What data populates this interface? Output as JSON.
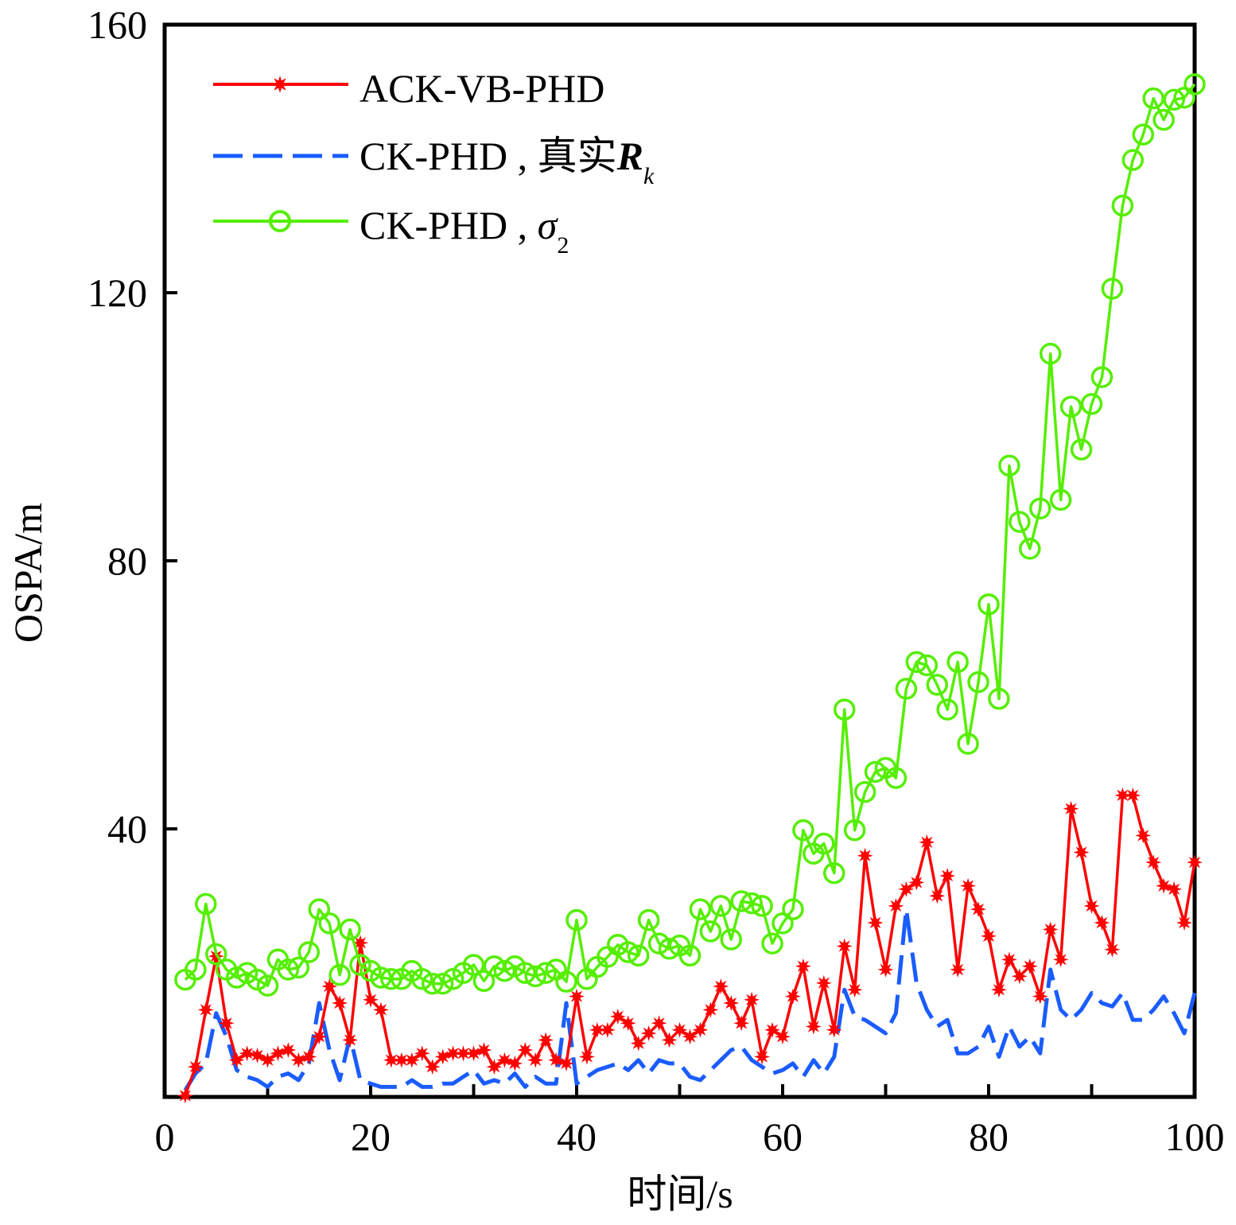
{
  "chart_data": {
    "type": "line",
    "title": "",
    "xlabel": "时间/s",
    "ylabel": "OSPA/m",
    "xlim": [
      0,
      100
    ],
    "ylim": [
      0,
      160
    ],
    "x_ticks": [
      0,
      20,
      40,
      60,
      80,
      100
    ],
    "x_tick_labels": [
      "0",
      "20",
      "40",
      "60",
      "80",
      "100"
    ],
    "x_minor_ticks": [
      10,
      30,
      50,
      70,
      90
    ],
    "y_ticks": [
      40,
      80,
      120,
      160
    ],
    "y_tick_labels": [
      "40",
      "80",
      "120",
      "160"
    ],
    "grid": false,
    "legend_position": "top-left",
    "legend": [
      {
        "name": "ACK-VB-PHD",
        "label_main": "ACK-VB-PHD",
        "label_math": "",
        "label_sub": "",
        "color": "#ff0000",
        "style": "solid",
        "marker": "star"
      },
      {
        "name": "CK-PHD , 真实R_k",
        "label_main": "CK-PHD , 真实",
        "label_math": "R",
        "label_sub": "k",
        "color": "#1a5cff",
        "style": "dashed",
        "marker": "none"
      },
      {
        "name": "CK-PHD , σ2",
        "label_main": "CK-PHD , ",
        "label_math": "σ",
        "label_sub": "2",
        "color": "#55ee00",
        "style": "solid",
        "marker": "circle"
      }
    ],
    "x": [
      2,
      3,
      4,
      5,
      6,
      7,
      8,
      9,
      10,
      11,
      12,
      13,
      14,
      15,
      16,
      17,
      18,
      19,
      20,
      21,
      22,
      23,
      24,
      25,
      26,
      27,
      28,
      29,
      30,
      31,
      32,
      33,
      34,
      35,
      36,
      37,
      38,
      39,
      40,
      41,
      42,
      43,
      44,
      45,
      46,
      47,
      48,
      49,
      50,
      51,
      52,
      53,
      54,
      55,
      56,
      57,
      58,
      59,
      60,
      61,
      62,
      63,
      64,
      65,
      66,
      67,
      68,
      69,
      70,
      71,
      72,
      73,
      74,
      75,
      76,
      77,
      78,
      79,
      80,
      81,
      82,
      83,
      84,
      85,
      86,
      87,
      88,
      89,
      90,
      91,
      92,
      93,
      94,
      95,
      96,
      97,
      98,
      99,
      100
    ],
    "series": [
      {
        "name": "ACK-VB-PHD",
        "color": "#ff0000",
        "values": [
          0.2,
          4.5,
          13,
          21,
          11,
          5.5,
          6.5,
          6.2,
          5.5,
          6.5,
          7,
          5.5,
          6,
          9,
          16.5,
          14,
          8.5,
          23,
          14.5,
          13,
          5.5,
          5.5,
          5.5,
          6.5,
          4.5,
          6,
          6.5,
          6.5,
          6.5,
          7,
          4.5,
          5.5,
          5,
          7,
          5.5,
          8.5,
          5.5,
          5,
          15,
          6,
          10,
          10,
          12,
          11,
          8,
          9.5,
          11,
          8.5,
          10,
          9,
          10,
          13,
          16.5,
          14,
          11,
          14.5,
          6,
          10,
          9,
          15,
          19.5,
          10.5,
          17,
          10,
          22.5,
          16,
          36,
          26,
          19,
          28.5,
          31,
          32,
          38,
          30,
          33,
          19,
          31.5,
          28,
          24,
          16,
          20.5,
          18,
          19.5,
          15,
          25,
          20.5,
          43,
          36.5,
          28.5,
          26,
          22,
          45,
          45,
          39,
          35,
          31.5,
          31,
          26,
          35
        ]
      },
      {
        "name": "CK-PHD , 真实R_k",
        "color": "#1a5cff",
        "values": [
          1,
          3.5,
          5,
          12.5,
          9,
          4,
          3,
          2.5,
          1.5,
          3,
          3.5,
          2.5,
          5,
          14,
          7,
          2.5,
          9,
          2.5,
          2,
          1.5,
          1.5,
          1.5,
          2.5,
          1.5,
          1.5,
          2,
          2,
          3,
          4,
          2,
          2.5,
          2,
          3.5,
          1.5,
          3,
          2,
          2,
          14,
          2,
          3,
          4,
          4.5,
          5,
          4,
          5.5,
          3.5,
          5.5,
          5,
          5,
          3,
          2.5,
          4,
          5.5,
          7,
          7.5,
          5.5,
          4.5,
          3.5,
          4,
          5,
          3,
          5.5,
          3.5,
          6,
          16,
          12,
          11.5,
          10.5,
          9.5,
          12.5,
          28,
          17,
          13,
          10.5,
          11.5,
          6.5,
          6.5,
          7.5,
          10.5,
          6,
          10.5,
          7.5,
          9,
          6.5,
          19,
          13,
          11.5,
          13,
          15.5,
          14,
          13.5,
          15.5,
          11.5,
          11.5,
          13,
          15,
          12.5,
          9.5,
          15.5
        ]
      },
      {
        "name": "CK-PHD , σ2",
        "color": "#55ee00",
        "values": [
          17.5,
          19,
          28.8,
          21.3,
          19,
          17.8,
          18.5,
          17.5,
          16.6,
          20.5,
          19,
          19.3,
          21.6,
          28,
          25.9,
          18.2,
          25,
          19.7,
          18.8,
          17.8,
          17.6,
          17.6,
          18.8,
          17.6,
          16.9,
          16.9,
          17.6,
          18.5,
          19.7,
          17.3,
          19.5,
          18.8,
          19.5,
          18.5,
          18,
          18.5,
          19,
          17.2,
          26.4,
          17.6,
          19.4,
          20.9,
          22.7,
          21.6,
          21.1,
          26.4,
          22.9,
          22.1,
          22.6,
          21.1,
          28,
          24.7,
          28.5,
          23.5,
          29.2,
          28.9,
          28.5,
          22.9,
          25.9,
          28,
          39.8,
          36.3,
          37.8,
          33.4,
          57.8,
          39.8,
          45.5,
          48.5,
          49.1,
          47.6,
          60.9,
          64.9,
          64.4,
          61.5,
          57.8,
          64.9,
          52.7,
          61.9,
          73.5,
          59.4,
          94.2,
          85.8,
          81.8,
          87.8,
          110.9,
          89.1,
          103,
          96.6,
          103.4,
          107.4,
          120.6,
          133,
          139.8,
          143.6,
          149,
          145.8,
          148.8,
          149.1,
          151.1
        ]
      }
    ]
  }
}
